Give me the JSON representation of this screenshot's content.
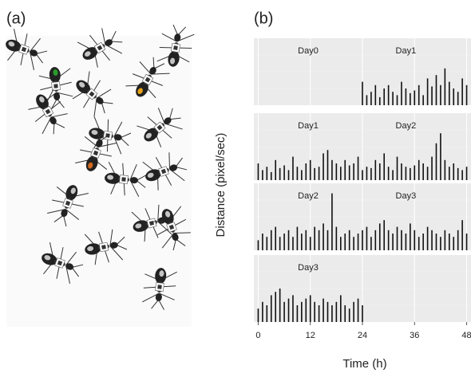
{
  "panel_labels": [
    "(a)",
    "(b)"
  ],
  "y_label": "Distance (pixel/sec)",
  "x_axis": {
    "label": "Time (h)",
    "xlim": [
      -1,
      49
    ],
    "xticks": [
      0,
      12,
      24,
      36,
      48
    ]
  },
  "chart_data": [
    {
      "type": "bar",
      "annotations": [
        "Day0",
        "Day1"
      ],
      "color": "#111111",
      "ylim": [
        0,
        1
      ],
      "x": [
        24,
        25,
        26,
        27,
        28,
        29,
        30,
        31,
        32,
        33,
        34,
        35,
        36,
        37,
        38,
        39,
        40,
        41,
        42,
        43,
        44,
        45,
        46,
        47,
        48
      ],
      "values": [
        0.35,
        0.15,
        0.2,
        0.3,
        0.12,
        0.25,
        0.3,
        0.2,
        0.15,
        0.35,
        0.25,
        0.18,
        0.22,
        0.3,
        0.15,
        0.4,
        0.28,
        0.45,
        0.3,
        0.55,
        0.35,
        0.25,
        0.2,
        0.4,
        0.3
      ]
    },
    {
      "type": "bar",
      "annotations": [
        "Day1",
        "Day2"
      ],
      "color": "#111111",
      "ylim": [
        0,
        1
      ],
      "x": [
        0,
        1,
        2,
        3,
        4,
        5,
        6,
        7,
        8,
        9,
        10,
        11,
        12,
        13,
        14,
        15,
        16,
        17,
        18,
        19,
        20,
        21,
        22,
        23,
        24,
        25,
        26,
        27,
        28,
        29,
        30,
        31,
        32,
        33,
        34,
        35,
        36,
        37,
        38,
        39,
        40,
        41,
        42,
        43,
        44,
        45,
        46,
        47,
        48
      ],
      "values": [
        0.25,
        0.15,
        0.2,
        0.12,
        0.3,
        0.18,
        0.22,
        0.15,
        0.35,
        0.2,
        0.15,
        0.25,
        0.3,
        0.18,
        0.2,
        0.4,
        0.45,
        0.3,
        0.25,
        0.2,
        0.3,
        0.22,
        0.25,
        0.35,
        0.15,
        0.2,
        0.18,
        0.3,
        0.25,
        0.4,
        0.2,
        0.15,
        0.35,
        0.25,
        0.2,
        0.18,
        0.22,
        0.3,
        0.25,
        0.2,
        0.35,
        0.55,
        0.7,
        0.3,
        0.2,
        0.25,
        0.18,
        0.15,
        0.2
      ]
    },
    {
      "type": "bar",
      "annotations": [
        "Day2",
        "Day3"
      ],
      "color": "#111111",
      "ylim": [
        0,
        1
      ],
      "x": [
        0,
        1,
        2,
        3,
        4,
        5,
        6,
        7,
        8,
        9,
        10,
        11,
        12,
        13,
        14,
        15,
        16,
        17,
        18,
        19,
        20,
        21,
        22,
        23,
        24,
        25,
        26,
        27,
        28,
        29,
        30,
        31,
        32,
        33,
        34,
        35,
        36,
        37,
        38,
        39,
        40,
        41,
        42,
        43,
        44,
        45,
        46,
        47,
        48
      ],
      "values": [
        0.15,
        0.25,
        0.2,
        0.3,
        0.35,
        0.2,
        0.25,
        0.3,
        0.2,
        0.35,
        0.25,
        0.3,
        0.2,
        0.35,
        0.3,
        0.4,
        0.3,
        0.85,
        0.35,
        0.2,
        0.25,
        0.3,
        0.2,
        0.25,
        0.3,
        0.35,
        0.2,
        0.3,
        0.4,
        0.45,
        0.3,
        0.25,
        0.35,
        0.3,
        0.25,
        0.4,
        0.3,
        0.2,
        0.25,
        0.35,
        0.3,
        0.25,
        0.2,
        0.3,
        0.25,
        0.2,
        0.3,
        0.45,
        0.25
      ]
    },
    {
      "type": "bar",
      "annotations": [
        "Day3"
      ],
      "color": "#111111",
      "ylim": [
        0,
        1
      ],
      "x": [
        0,
        1,
        2,
        3,
        4,
        5,
        6,
        7,
        8,
        9,
        10,
        11,
        12,
        13,
        14,
        15,
        16,
        17,
        18,
        19,
        20,
        21,
        22,
        23,
        24
      ],
      "values": [
        0.2,
        0.3,
        0.25,
        0.4,
        0.45,
        0.5,
        0.3,
        0.35,
        0.4,
        0.25,
        0.3,
        0.35,
        0.4,
        0.3,
        0.25,
        0.35,
        0.3,
        0.25,
        0.3,
        0.4,
        0.25,
        0.2,
        0.3,
        0.35,
        0.25
      ]
    }
  ]
}
